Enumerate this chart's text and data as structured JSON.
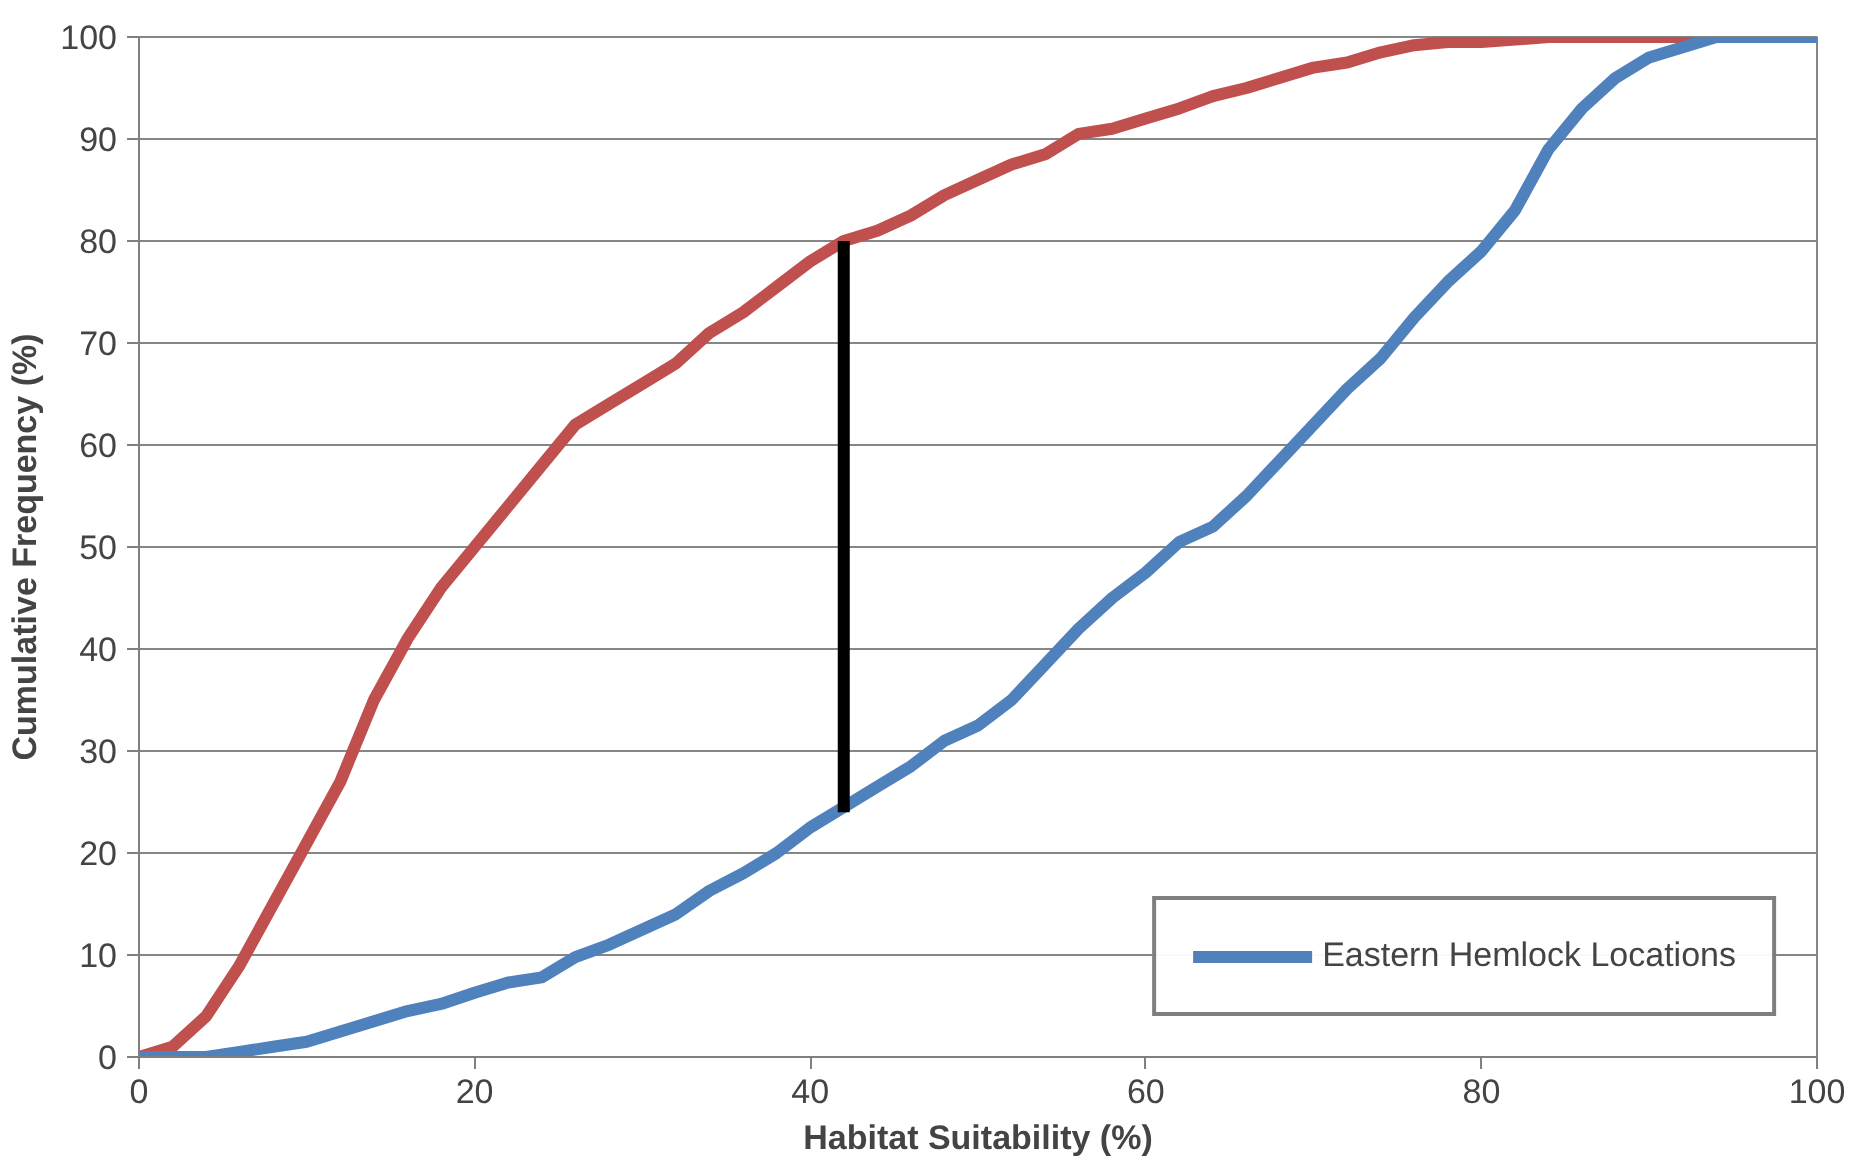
{
  "chart_data": {
    "type": "line",
    "xlabel": "Habitat Suitability (%)",
    "ylabel": "Cumulative Frequency (%)",
    "xlim": [
      0,
      100
    ],
    "ylim": [
      0,
      100
    ],
    "xticks": [
      0,
      20,
      40,
      60,
      80,
      100
    ],
    "yticks": [
      0,
      10,
      20,
      30,
      40,
      50,
      60,
      70,
      80,
      90,
      100
    ],
    "grid": "y",
    "legend": "bottom right",
    "marker": "none",
    "line_style": "solid",
    "series": [
      {
        "color": "#c0504d",
        "x": [
          0,
          2,
          4,
          6,
          8,
          10,
          12,
          14,
          16,
          18,
          20,
          22,
          24,
          26,
          28,
          30,
          32,
          34,
          36,
          38,
          40,
          42,
          44,
          46,
          48,
          50,
          52,
          54,
          56,
          58,
          60,
          62,
          64,
          66,
          68,
          70,
          72,
          74,
          76,
          78,
          80,
          84,
          100
        ],
        "values": [
          0,
          1,
          4,
          9,
          15,
          21,
          27,
          35,
          41,
          46,
          50,
          54,
          58,
          62,
          64,
          66,
          68,
          71,
          73,
          75.5,
          78,
          80,
          81,
          82.5,
          84.5,
          86,
          87.5,
          88.5,
          90.5,
          91,
          92,
          93,
          94.2,
          95,
          96,
          97,
          97.5,
          98.5,
          99.2,
          99.5,
          99.5,
          100,
          100
        ]
      },
      {
        "name": "Eastern Hemlock Locations",
        "color": "#4f81bd",
        "x": [
          0,
          4,
          6,
          8,
          10,
          12,
          14,
          16,
          18,
          20,
          22,
          24,
          26,
          28,
          30,
          32,
          34,
          36,
          38,
          40,
          42,
          44,
          46,
          48,
          50,
          52,
          54,
          56,
          58,
          60,
          62,
          64,
          66,
          68,
          70,
          72,
          74,
          76,
          78,
          80,
          82,
          84,
          86,
          88,
          90,
          92,
          94,
          100
        ],
        "values": [
          0,
          0,
          0.5,
          1,
          1.5,
          2.5,
          3.5,
          4.5,
          5.2,
          6.3,
          7.3,
          7.8,
          9.8,
          11,
          12.5,
          14,
          16.3,
          18,
          20,
          22.5,
          24.5,
          26.5,
          28.5,
          31,
          32.5,
          35,
          38.5,
          42,
          45,
          47.5,
          50.5,
          52,
          55,
          58.5,
          62,
          65.5,
          68.5,
          72.5,
          76,
          79,
          83,
          89,
          93,
          96,
          98,
          99,
          100,
          100
        ]
      },
      {
        "color": "#000000",
        "x": [
          42,
          42
        ],
        "values": [
          24,
          80
        ]
      }
    ]
  }
}
